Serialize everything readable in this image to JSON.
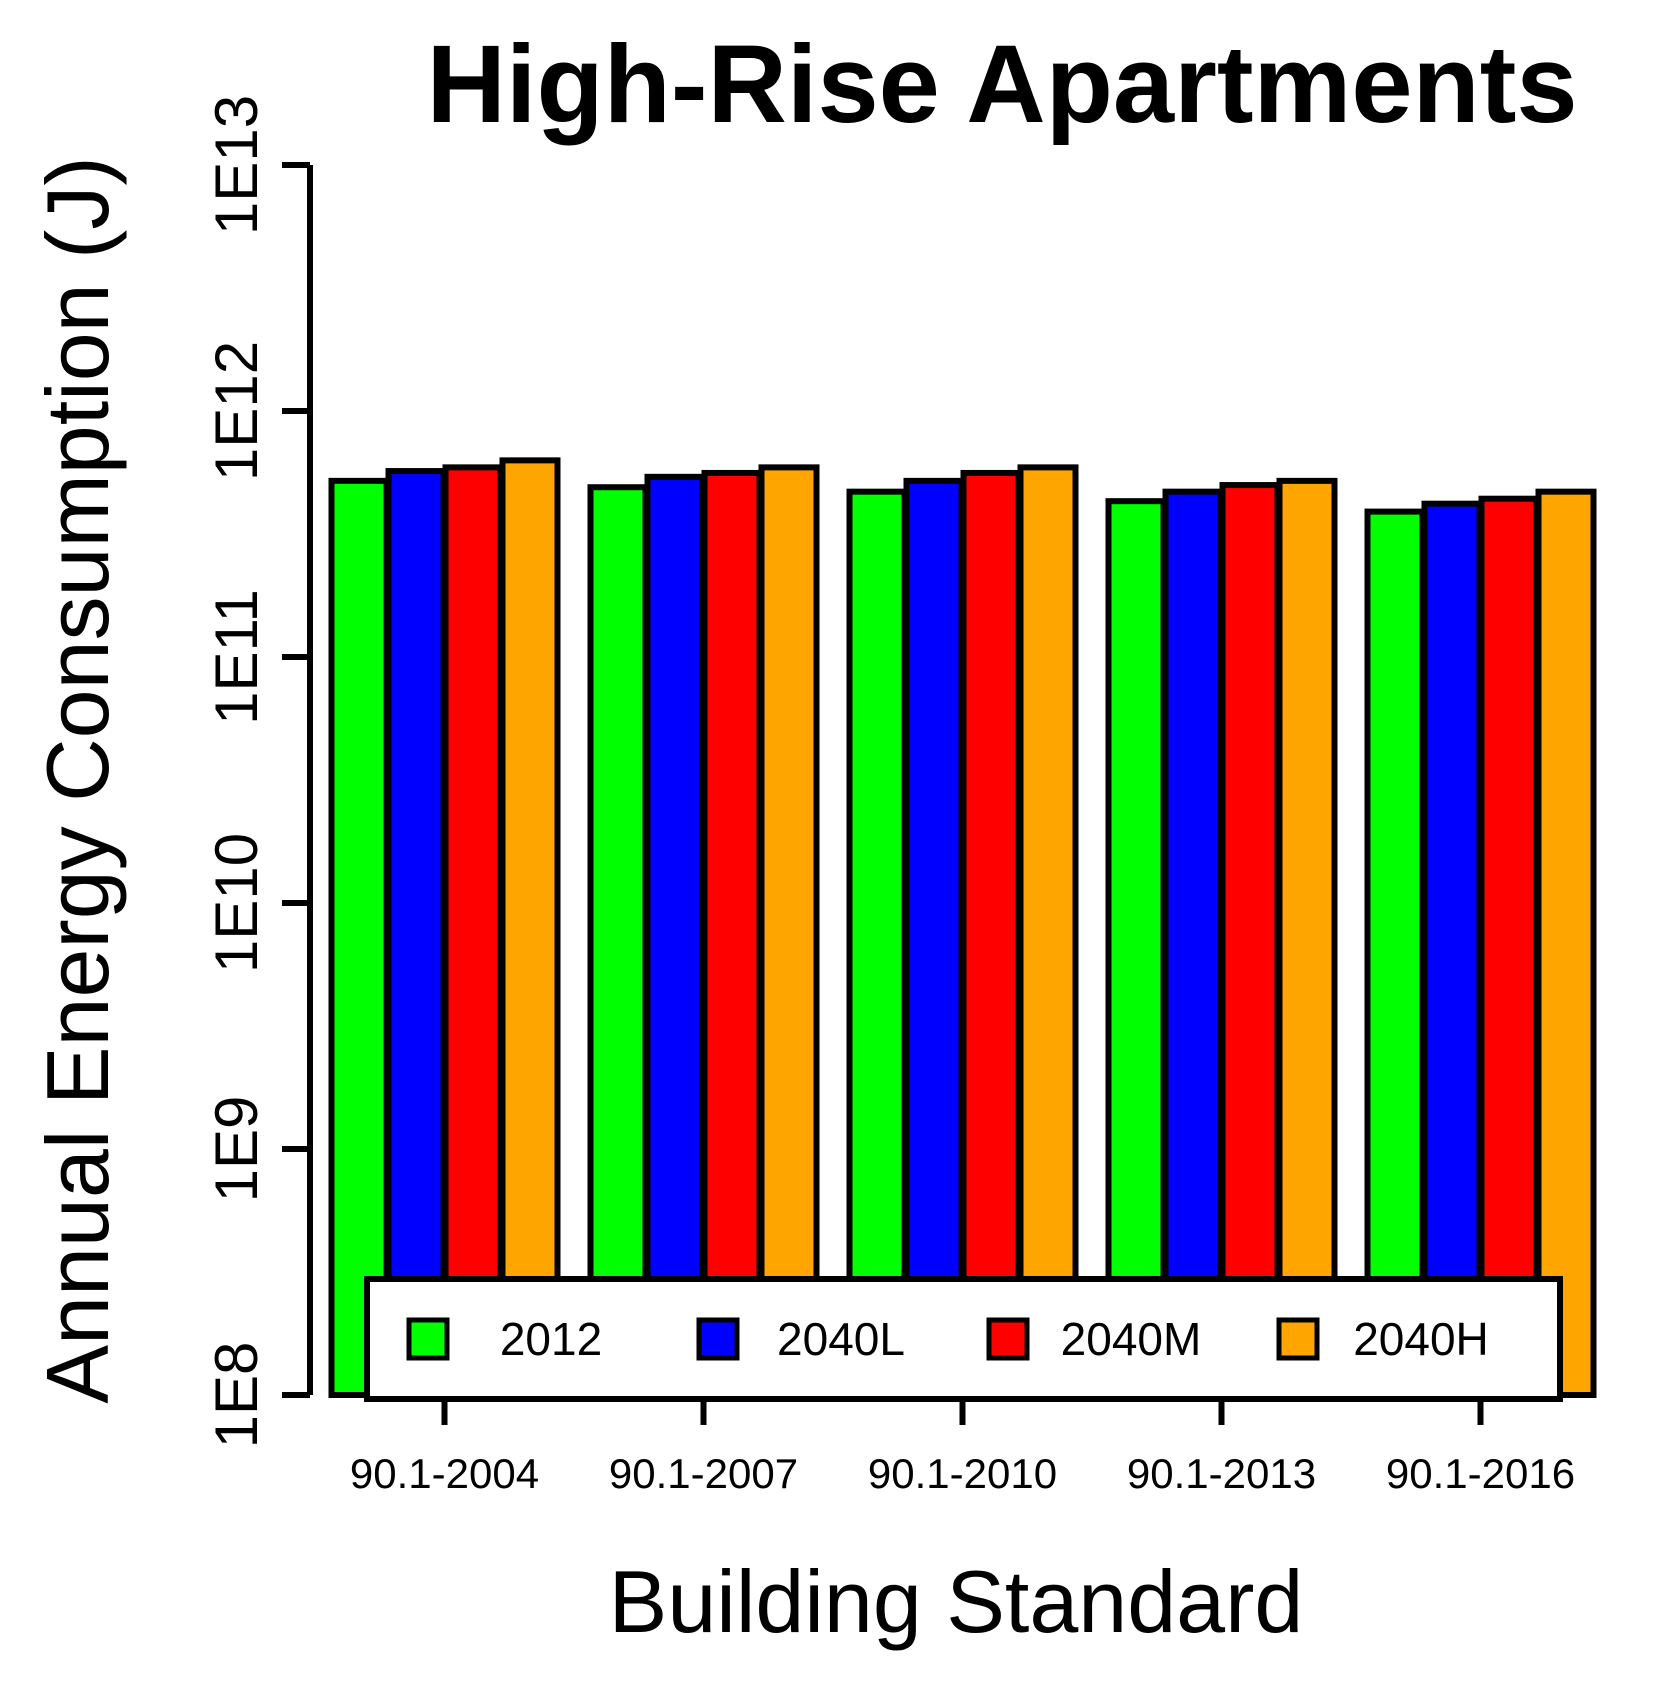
{
  "chart_data": {
    "type": "bar",
    "title": "High-Rise Apartments",
    "xlabel": "Building Standard",
    "ylabel": "Annual Energy Consumption (J)",
    "yscale": "log10",
    "ylim": [
      100000000,
      10000000000000
    ],
    "yticks": [
      {
        "value": 100000000,
        "label": "1E8"
      },
      {
        "value": 1000000000,
        "label": "1E9"
      },
      {
        "value": 10000000000,
        "label": "1E10"
      },
      {
        "value": 100000000000,
        "label": "1E11"
      },
      {
        "value": 1000000000000,
        "label": "1E12"
      },
      {
        "value": 10000000000000,
        "label": "1E13"
      }
    ],
    "categories": [
      "90.1-2004",
      "90.1-2007",
      "90.1-2010",
      "90.1-2013",
      "90.1-2016"
    ],
    "series": [
      {
        "name": "2012",
        "color": "#00ff00",
        "values": [
          520000000000,
          490000000000,
          470000000000,
          430000000000,
          390000000000
        ]
      },
      {
        "name": "2040L",
        "color": "#0000ff",
        "values": [
          570000000000,
          540000000000,
          520000000000,
          470000000000,
          420000000000
        ]
      },
      {
        "name": "2040M",
        "color": "#ff0000",
        "values": [
          590000000000,
          560000000000,
          560000000000,
          500000000000,
          440000000000
        ]
      },
      {
        "name": "2040H",
        "color": "#ffa500",
        "values": [
          630000000000,
          590000000000,
          590000000000,
          520000000000,
          470000000000
        ]
      }
    ],
    "legend": {
      "position": "bottom-center",
      "horizontal": true
    }
  }
}
